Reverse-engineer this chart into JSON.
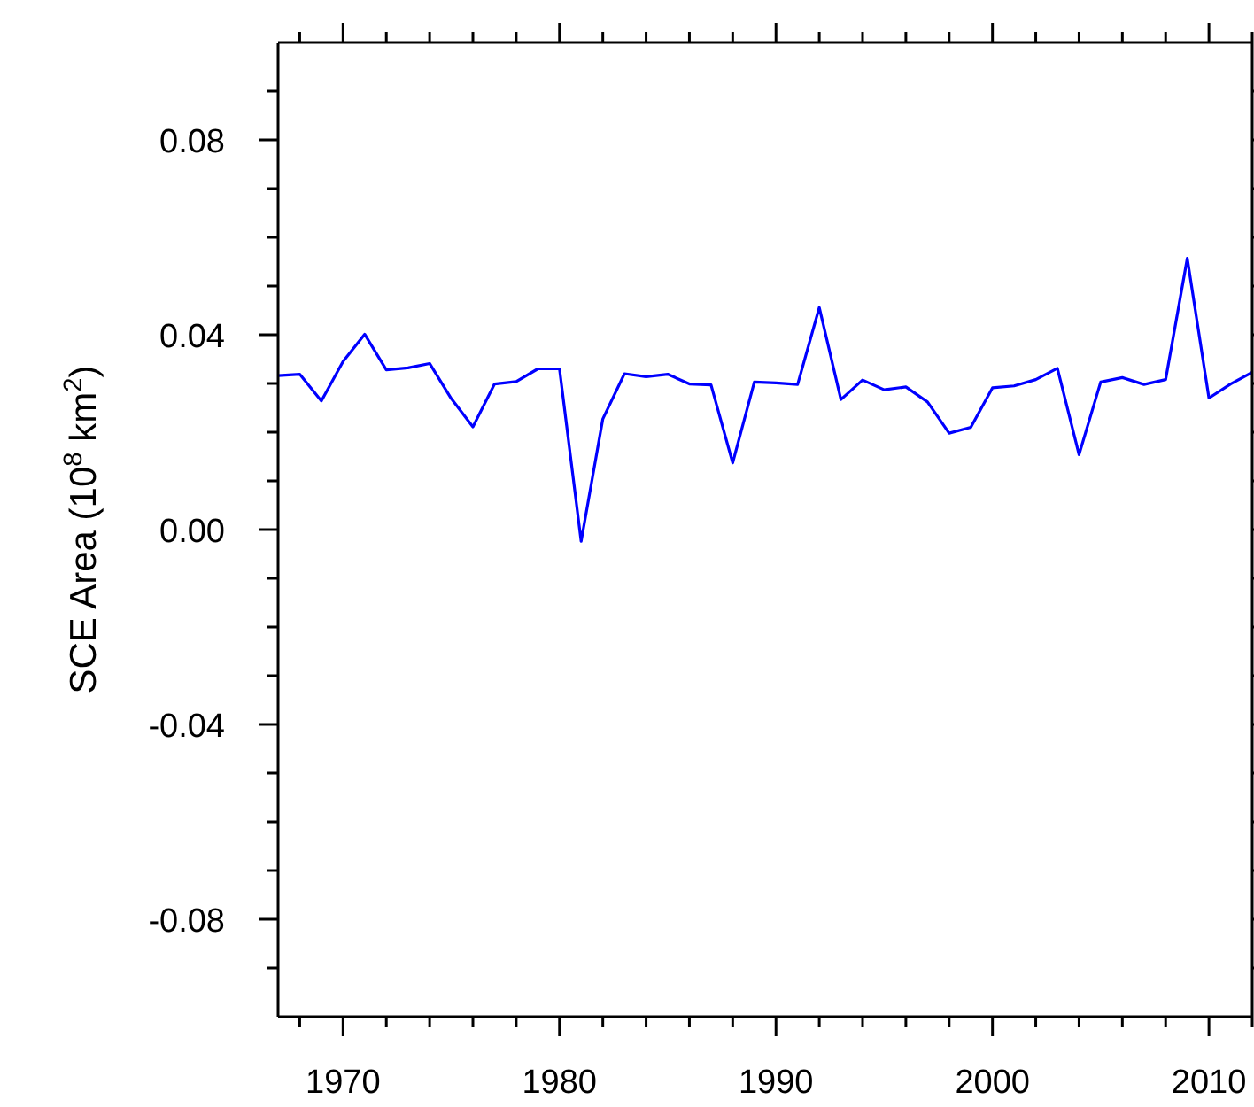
{
  "chart_data": {
    "type": "line",
    "ylabel": "SCE Area (10$^{8}$ km$^{2}$)",
    "x": [
      1967,
      1968,
      1969,
      1970,
      1971,
      1972,
      1973,
      1974,
      1975,
      1976,
      1977,
      1978,
      1979,
      1980,
      1981,
      1982,
      1983,
      1984,
      1985,
      1986,
      1987,
      1988,
      1989,
      1990,
      1991,
      1992,
      1993,
      1994,
      1995,
      1996,
      1997,
      1998,
      1999,
      2000,
      2001,
      2002,
      2003,
      2004,
      2005,
      2006,
      2007,
      2008,
      2009,
      2010,
      2011,
      2012
    ],
    "series": [
      {
        "color": "#0000ff",
        "values": [
          0.0316,
          0.0319,
          0.0264,
          0.0345,
          0.0401,
          0.0328,
          0.0332,
          0.0341,
          0.0269,
          0.0211,
          0.0299,
          0.0304,
          0.033,
          0.033,
          -0.0024,
          0.0227,
          0.032,
          0.0314,
          0.0319,
          0.0299,
          0.0297,
          0.0137,
          0.0303,
          0.0301,
          0.0298,
          0.0456,
          0.0267,
          0.0307,
          0.0287,
          0.0293,
          0.0262,
          0.0198,
          0.021,
          0.0291,
          0.0295,
          0.0308,
          0.0331,
          0.0154,
          0.0303,
          0.0312,
          0.0298,
          0.0308,
          0.0557,
          0.027,
          0.0299,
          0.0323
        ]
      }
    ],
    "xlim": [
      1967,
      2012
    ],
    "xticks": [
      {
        "value": 1968,
        "label": null
      },
      1970,
      {
        "value": 1972,
        "label": null
      },
      {
        "value": 1974,
        "label": null
      },
      {
        "value": 1976,
        "label": null
      },
      {
        "value": 1978,
        "label": null
      },
      1980,
      {
        "value": 1982,
        "label": null
      },
      {
        "value": 1984,
        "label": null
      },
      {
        "value": 1986,
        "label": null
      },
      {
        "value": 1988,
        "label": null
      },
      1990,
      {
        "value": 1992,
        "label": null
      },
      {
        "value": 1994,
        "label": null
      },
      {
        "value": 1996,
        "label": null
      },
      {
        "value": 1998,
        "label": null
      },
      2000,
      {
        "value": 2002,
        "label": null
      },
      {
        "value": 2004,
        "label": null
      },
      {
        "value": 2006,
        "label": null
      },
      {
        "value": 2008,
        "label": null
      },
      2010,
      {
        "value": 2012,
        "label": null
      }
    ],
    "ylim": [
      -0.1,
      0.1
    ],
    "yticks": [
      {
        "value": -0.09,
        "label": null
      },
      {
        "value": -0.08,
        "label": "-0.08"
      },
      {
        "value": -0.07,
        "label": null
      },
      {
        "value": -0.06,
        "label": null
      },
      {
        "value": -0.05,
        "label": null
      },
      {
        "value": -0.04,
        "label": "-0.04"
      },
      {
        "value": -0.03,
        "label": null
      },
      {
        "value": -0.02,
        "label": null
      },
      {
        "value": -0.01,
        "label": null
      },
      {
        "value": 0,
        "label": "0.00"
      },
      {
        "value": 0.01,
        "label": null
      },
      {
        "value": 0.02,
        "label": null
      },
      {
        "value": 0.03,
        "label": null
      },
      {
        "value": 0.04,
        "label": "0.04"
      },
      {
        "value": 0.05,
        "label": null
      },
      {
        "value": 0.06,
        "label": null
      },
      {
        "value": 0.07,
        "label": null
      },
      {
        "value": 0.08,
        "label": "0.08"
      },
      {
        "value": 0.09,
        "label": null
      }
    ],
    "marker": "none",
    "line_style": "solid"
  }
}
